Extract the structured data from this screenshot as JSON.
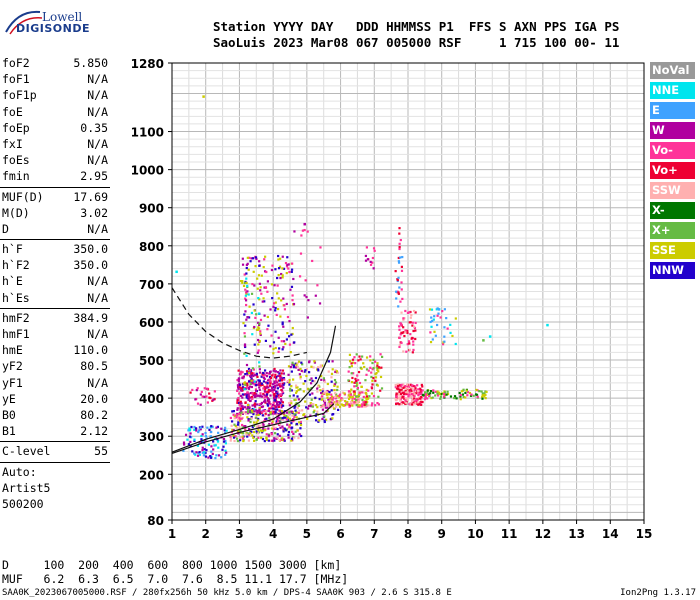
{
  "logo": {
    "line1": "Lowell",
    "line2": "DIGISONDE"
  },
  "header": {
    "row1": "Station YYYY DAY   DDD HHMMSS P1  FFS S AXN PPS IGA PS",
    "row2": "SaoLuis 2023 Mar08 067 005000 RSF     1 715 100 00- 11"
  },
  "params": [
    {
      "k": "foF2",
      "v": "5.850"
    },
    {
      "k": "foF1",
      "v": "N/A"
    },
    {
      "k": "foF1p",
      "v": "N/A"
    },
    {
      "k": "foE",
      "v": "N/A"
    },
    {
      "k": "foEp",
      "v": "0.35"
    },
    {
      "k": "fxI",
      "v": "N/A"
    },
    {
      "k": "foEs",
      "v": "N/A"
    },
    {
      "k": "fmin",
      "v": "2.95"
    },
    {
      "sep": true
    },
    {
      "k": "MUF(D)",
      "v": "17.69"
    },
    {
      "k": "M(D)",
      "v": "3.02"
    },
    {
      "k": "D",
      "v": "N/A"
    },
    {
      "sep": true
    },
    {
      "k": "h`F",
      "v": "350.0"
    },
    {
      "k": "h`F2",
      "v": "350.0"
    },
    {
      "k": "h`E",
      "v": "N/A"
    },
    {
      "k": "h`Es",
      "v": "N/A"
    },
    {
      "sep": true
    },
    {
      "k": "hmF2",
      "v": "384.9"
    },
    {
      "k": "hmF1",
      "v": "N/A"
    },
    {
      "k": "hmE",
      "v": "110.0"
    },
    {
      "k": "yF2",
      "v": "80.5"
    },
    {
      "k": "yF1",
      "v": "N/A"
    },
    {
      "k": "yE",
      "v": "20.0"
    },
    {
      "k": "B0",
      "v": "80.2"
    },
    {
      "k": "B1",
      "v": "2.12"
    },
    {
      "sep": true
    },
    {
      "k": "C-level",
      "v": "55"
    },
    {
      "sep": true
    }
  ],
  "auto": [
    "Auto:",
    "Artist5",
    "500200"
  ],
  "legend": [
    {
      "label": "NoVal",
      "color": "#999999"
    },
    {
      "label": "NNE",
      "color": "#00e5ee"
    },
    {
      "label": "E",
      "color": "#3fa2ff"
    },
    {
      "label": "W",
      "color": "#b0009f"
    },
    {
      "label": "Vo-",
      "color": "#ff3399"
    },
    {
      "label": "Vo+",
      "color": "#ee0033"
    },
    {
      "label": "SSW",
      "color": "#ffb0b0"
    },
    {
      "label": "X-",
      "color": "#007700"
    },
    {
      "label": "X+",
      "color": "#66bb44"
    },
    {
      "label": "SSE",
      "color": "#cccc00"
    },
    {
      "label": "NNW",
      "color": "#2200cc"
    }
  ],
  "dmuf": {
    "row1": "D     100  200  400  600  800 1000 1500 3000 [km]",
    "row2": "MUF   6.2  6.3  6.5  7.0  7.6  8.5 11.1 17.7 [MHz]"
  },
  "footer": "SAA0K_2023067005000.RSF / 280fx256h 50 kHz 5.0 km / DPS-4 SAA0K 903 / 2.6 S 315.8 E",
  "version": "Ion2Png 1.3.17",
  "chart_data": {
    "type": "scatter",
    "xlim": [
      1,
      15
    ],
    "ylim": [
      80,
      1280
    ],
    "x_ticks": [
      "1",
      "2",
      "3",
      "4",
      "5",
      "6",
      "7",
      "8",
      "9",
      "10",
      "11",
      "12",
      "13",
      "14",
      "15"
    ],
    "y_ticks": [
      {
        "v": 80,
        "label": "80"
      },
      {
        "v": 200,
        "label": "200"
      },
      {
        "v": 300,
        "label": "300"
      },
      {
        "v": 400,
        "label": "400"
      },
      {
        "v": 500,
        "label": "500"
      },
      {
        "v": 600,
        "label": "600"
      },
      {
        "v": 700,
        "label": "700"
      },
      {
        "v": 800,
        "label": "800"
      },
      {
        "v": 900,
        "label": "900"
      },
      {
        "v": 1000,
        "label": "1000"
      },
      {
        "v": 1100,
        "label": "1100"
      },
      {
        "v": 1280,
        "label": "1280"
      }
    ],
    "grid": true,
    "clusters": [
      {
        "x0": 2.9,
        "x1": 4.3,
        "y0": 360,
        "y1": 480,
        "n": 420,
        "colors": [
          "#b0009f",
          "#ff3399",
          "#ee0033",
          "#2200cc",
          "#b0009f"
        ]
      },
      {
        "x0": 2.7,
        "x1": 4.8,
        "y0": 290,
        "y1": 370,
        "n": 300,
        "colors": [
          "#cccc00",
          "#ffb0b0",
          "#ff3399",
          "#b0009f",
          "#2200cc",
          "#66bb44"
        ]
      },
      {
        "x0": 3.0,
        "x1": 4.6,
        "y0": 520,
        "y1": 780,
        "n": 170,
        "colors": [
          "#b0009f",
          "#ff3399",
          "#2200cc",
          "#cccc00"
        ]
      },
      {
        "x0": 1.3,
        "x1": 2.6,
        "y0": 245,
        "y1": 330,
        "n": 110,
        "colors": [
          "#2200cc",
          "#b0009f",
          "#3fa2ff",
          "#00e5ee"
        ]
      },
      {
        "x0": 4.4,
        "x1": 5.9,
        "y0": 340,
        "y1": 500,
        "n": 220,
        "colors": [
          "#b0009f",
          "#2200cc",
          "#66bb44",
          "#ffb0b0",
          "#cccc00"
        ]
      },
      {
        "x0": 5.4,
        "x1": 6.8,
        "y0": 380,
        "y1": 420,
        "n": 140,
        "colors": [
          "#ffb0b0",
          "#ff3399",
          "#cccc00"
        ]
      },
      {
        "x0": 6.2,
        "x1": 7.2,
        "y0": 380,
        "y1": 520,
        "n": 120,
        "colors": [
          "#cccc00",
          "#ff3399",
          "#ee0033",
          "#66bb44"
        ]
      },
      {
        "x0": 7.6,
        "x1": 8.4,
        "y0": 385,
        "y1": 440,
        "n": 200,
        "colors": [
          "#ff3399",
          "#ffb0b0",
          "#ee0033"
        ]
      },
      {
        "x0": 7.7,
        "x1": 8.2,
        "y0": 520,
        "y1": 640,
        "n": 60,
        "colors": [
          "#ff3399",
          "#ffb0b0",
          "#ee0033"
        ]
      },
      {
        "x0": 8.4,
        "x1": 10.3,
        "y0": 400,
        "y1": 425,
        "n": 90,
        "colors": [
          "#66bb44",
          "#007700",
          "#ff3399",
          "#cccc00"
        ]
      },
      {
        "x0": 8.6,
        "x1": 9.4,
        "y0": 540,
        "y1": 640,
        "n": 35,
        "colors": [
          "#3fa2ff",
          "#00e5ee",
          "#cccc00",
          "#ff3399"
        ]
      },
      {
        "x0": 7.6,
        "x1": 7.8,
        "y0": 640,
        "y1": 860,
        "n": 30,
        "colors": [
          "#ff3399",
          "#ee0033",
          "#3fa2ff"
        ]
      },
      {
        "x0": 6.7,
        "x1": 7.0,
        "y0": 740,
        "y1": 800,
        "n": 12,
        "colors": [
          "#b0009f",
          "#ff3399"
        ]
      },
      {
        "x0": 4.5,
        "x1": 5.4,
        "y0": 600,
        "y1": 860,
        "n": 18,
        "colors": [
          "#b0009f",
          "#ff3399"
        ]
      },
      {
        "x0": 1.5,
        "x1": 2.3,
        "y0": 380,
        "y1": 430,
        "n": 25,
        "colors": [
          "#b0009f",
          "#ee0033",
          "#ff3399"
        ]
      },
      {
        "x0": 3.1,
        "x1": 3.6,
        "y0": 360,
        "y1": 720,
        "n": 60,
        "colors": [
          "#cccc00",
          "#66bb44",
          "#00e5ee",
          "#b0009f"
        ]
      }
    ],
    "singles": [
      {
        "x": 1.9,
        "y": 1195,
        "c": "#cccc00"
      },
      {
        "x": 1.1,
        "y": 735,
        "c": "#00e5ee"
      },
      {
        "x": 10.4,
        "y": 565,
        "c": "#00e5ee"
      },
      {
        "x": 12.1,
        "y": 595,
        "c": "#00e5ee"
      },
      {
        "x": 10.2,
        "y": 555,
        "c": "#66bb44"
      },
      {
        "x": 4.9,
        "y": 860,
        "c": "#b0009f"
      }
    ],
    "traces": [
      {
        "style": "dashed",
        "points": [
          [
            1.0,
            690
          ],
          [
            1.5,
            620
          ],
          [
            2.0,
            575
          ],
          [
            2.5,
            545
          ],
          [
            3.0,
            525
          ],
          [
            3.5,
            510
          ],
          [
            4.0,
            505
          ],
          [
            4.5,
            510
          ],
          [
            5.0,
            520
          ]
        ]
      },
      {
        "style": "solid",
        "points": [
          [
            1.0,
            255
          ],
          [
            2.0,
            285
          ],
          [
            3.0,
            310
          ],
          [
            4.0,
            330
          ],
          [
            5.0,
            350
          ],
          [
            5.5,
            360
          ],
          [
            5.8,
            385
          ]
        ]
      },
      {
        "style": "solid",
        "points": [
          [
            1.0,
            258
          ],
          [
            2.0,
            292
          ],
          [
            3.0,
            318
          ],
          [
            4.0,
            345
          ],
          [
            4.8,
            390
          ],
          [
            5.3,
            440
          ],
          [
            5.7,
            520
          ],
          [
            5.85,
            590
          ]
        ]
      }
    ]
  }
}
